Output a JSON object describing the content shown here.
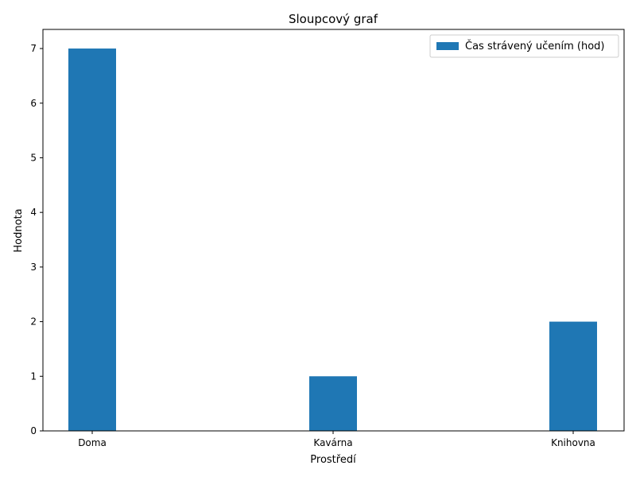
{
  "chart_data": {
    "type": "bar",
    "title": "Sloupcový graf",
    "xlabel": "Prostředí",
    "ylabel": "Hodnota",
    "categories": [
      "Doma",
      "Kavárna",
      "Knihovna"
    ],
    "series": [
      {
        "name": "Čas strávený učením (hod)",
        "values": [
          7,
          1,
          2
        ],
        "color": "#1f77b4"
      }
    ],
    "ylim": [
      0,
      7.35
    ],
    "yticks": [
      0,
      1,
      2,
      3,
      4,
      5,
      6,
      7
    ],
    "grid": false,
    "legend_position": "top-right"
  }
}
